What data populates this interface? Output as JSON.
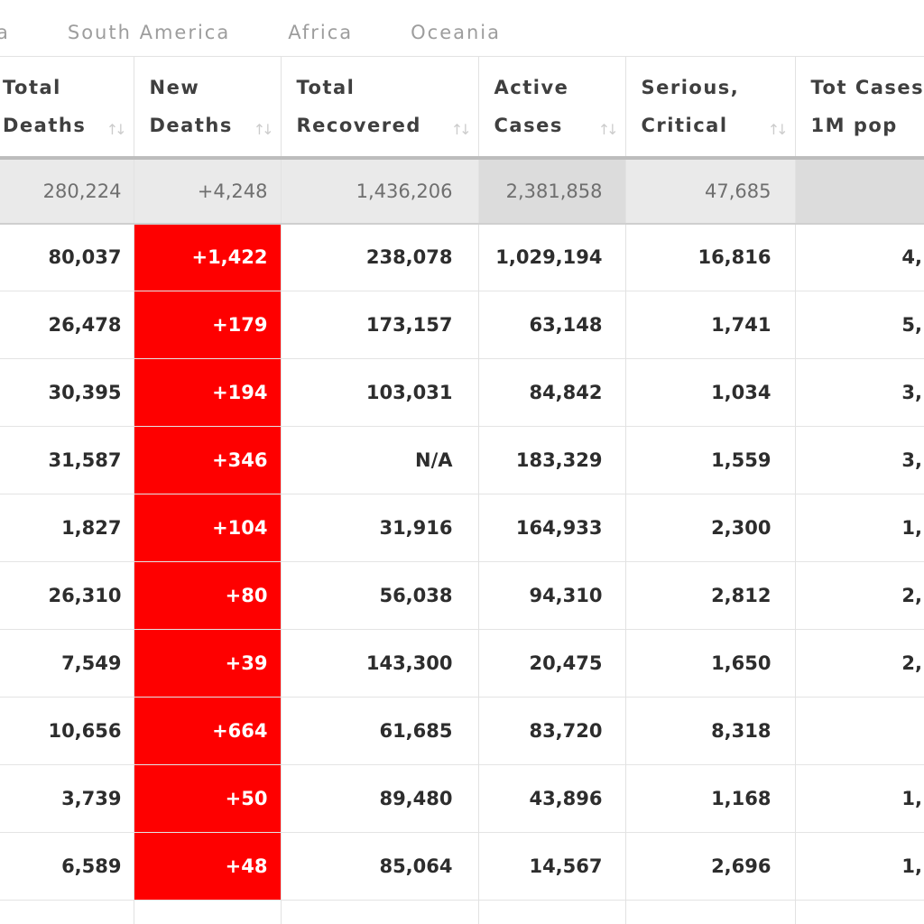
{
  "tabs": [
    {
      "label": "a"
    },
    {
      "label": "South America"
    },
    {
      "label": "Africa"
    },
    {
      "label": "Oceania"
    }
  ],
  "table": {
    "columns": [
      {
        "line1": "Total",
        "line2": "Deaths",
        "sortable": true
      },
      {
        "line1": "New",
        "line2": "Deaths",
        "sortable": true
      },
      {
        "line1": "Total",
        "line2": "Recovered",
        "sortable": true
      },
      {
        "line1": "Active",
        "line2": "Cases",
        "sortable": true
      },
      {
        "line1": "Serious,",
        "line2": "Critical",
        "sortable": true
      },
      {
        "line1": "Tot Cases/",
        "line2": "1M pop",
        "sortable": true
      }
    ],
    "total_row": {
      "total_deaths": "280,224",
      "new_deaths": "+4,248",
      "total_recovered": "1,436,206",
      "active_cases": "2,381,858",
      "serious_critical": "47,685",
      "tot_cases_1m": ""
    },
    "rows": [
      {
        "total_deaths": "80,037",
        "new_deaths": "+1,422",
        "total_recovered": "238,078",
        "active_cases": "1,029,194",
        "serious_critical": "16,816",
        "tot_cases_1m": "4,"
      },
      {
        "total_deaths": "26,478",
        "new_deaths": "+179",
        "total_recovered": "173,157",
        "active_cases": "63,148",
        "serious_critical": "1,741",
        "tot_cases_1m": "5,"
      },
      {
        "total_deaths": "30,395",
        "new_deaths": "+194",
        "total_recovered": "103,031",
        "active_cases": "84,842",
        "serious_critical": "1,034",
        "tot_cases_1m": "3,"
      },
      {
        "total_deaths": "31,587",
        "new_deaths": "+346",
        "total_recovered": "N/A",
        "active_cases": "183,329",
        "serious_critical": "1,559",
        "tot_cases_1m": "3,"
      },
      {
        "total_deaths": "1,827",
        "new_deaths": "+104",
        "total_recovered": "31,916",
        "active_cases": "164,933",
        "serious_critical": "2,300",
        "tot_cases_1m": "1,"
      },
      {
        "total_deaths": "26,310",
        "new_deaths": "+80",
        "total_recovered": "56,038",
        "active_cases": "94,310",
        "serious_critical": "2,812",
        "tot_cases_1m": "2,"
      },
      {
        "total_deaths": "7,549",
        "new_deaths": "+39",
        "total_recovered": "143,300",
        "active_cases": "20,475",
        "serious_critical": "1,650",
        "tot_cases_1m": "2,"
      },
      {
        "total_deaths": "10,656",
        "new_deaths": "+664",
        "total_recovered": "61,685",
        "active_cases": "83,720",
        "serious_critical": "8,318",
        "tot_cases_1m": ""
      },
      {
        "total_deaths": "3,739",
        "new_deaths": "+50",
        "total_recovered": "89,480",
        "active_cases": "43,896",
        "serious_critical": "1,168",
        "tot_cases_1m": "1,"
      },
      {
        "total_deaths": "6,589",
        "new_deaths": "+48",
        "total_recovered": "85,064",
        "active_cases": "14,567",
        "serious_critical": "2,696",
        "tot_cases_1m": "1,"
      }
    ],
    "colors": {
      "new_deaths_bg": "#fe0000",
      "new_deaths_text": "#ffffff",
      "total_row_bg": "#eaeaea",
      "total_row_highlight_bg": "#dcdcdc"
    }
  }
}
